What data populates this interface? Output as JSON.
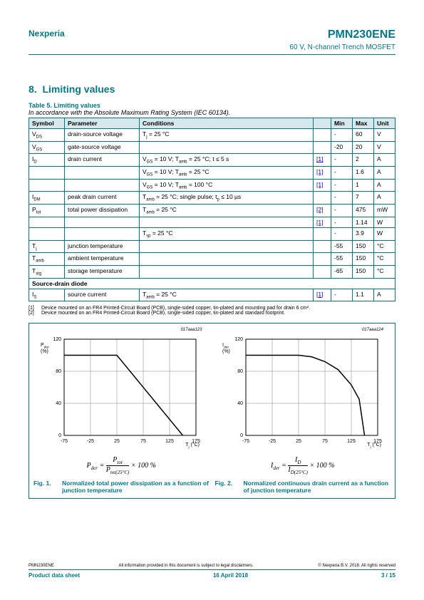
{
  "header": {
    "brand": "Nexperia",
    "part": "PMN230ENE",
    "subtitle": "60 V, N-channel Trench MOSFET"
  },
  "section": {
    "number": "8.",
    "title": "Limiting values"
  },
  "tableTitle": "Table 5. Limiting values",
  "tableNote": "In accordance with the Absolute Maximum Rating System (IEC 60134).",
  "headers": {
    "symbol": "Symbol",
    "parameter": "Parameter",
    "conditions": "Conditions",
    "blank": "",
    "min": "Min",
    "max": "Max",
    "unit": "Unit"
  },
  "rows": [
    {
      "sym": "V<sub>DS</sub>",
      "param": "drain-source voltage",
      "cond": "T<sub>j</sub> = 25 °C",
      "ref": "",
      "min": "-",
      "max": "60",
      "unit": "V"
    },
    {
      "sym": "V<sub>GS</sub>",
      "param": "gate-source voltage",
      "cond": "",
      "ref": "",
      "min": "-20",
      "max": "20",
      "unit": "V"
    },
    {
      "sym": "I<sub>D</sub>",
      "param": "drain current",
      "cond": "V<sub>GS</sub> = 10 V; T<sub>amb</sub> = 25 °C; t ≤ 5 s",
      "ref": "[1]",
      "min": "-",
      "max": "2",
      "unit": "A"
    },
    {
      "sym": "",
      "param": "",
      "cond": "V<sub>GS</sub> = 10 V; T<sub>amb</sub> = 25 °C",
      "ref": "[1]",
      "min": "-",
      "max": "1.6",
      "unit": "A"
    },
    {
      "sym": "",
      "param": "",
      "cond": "V<sub>GS</sub> = 10 V; T<sub>amb</sub> = 100 °C",
      "ref": "[1]",
      "min": "-",
      "max": "1",
      "unit": "A"
    },
    {
      "sym": "I<sub>DM</sub>",
      "param": "peak drain current",
      "cond": "T<sub>amb</sub> = 25 °C; single pulse; t<sub>p</sub> ≤  10 µs",
      "ref": "",
      "min": "-",
      "max": "7",
      "unit": "A"
    },
    {
      "sym": "P<sub>tot</sub>",
      "param": "total power dissipation",
      "cond": "T<sub>amb</sub> = 25 °C",
      "ref": "[2]",
      "min": "-",
      "max": "475",
      "unit": "mW"
    },
    {
      "sym": "",
      "param": "",
      "cond": "",
      "ref": "[1]",
      "min": "-",
      "max": "1.14",
      "unit": "W"
    },
    {
      "sym": "",
      "param": "",
      "cond": "T<sub>sp</sub> = 25 °C",
      "ref": "",
      "min": "-",
      "max": "3.9",
      "unit": "W"
    },
    {
      "sym": "T<sub>j</sub>",
      "param": "junction temperature",
      "cond": "",
      "ref": "",
      "min": "-55",
      "max": "150",
      "unit": "°C"
    },
    {
      "sym": "T<sub>amb</sub>",
      "param": "ambient temperature",
      "cond": "",
      "ref": "",
      "min": "-55",
      "max": "150",
      "unit": "°C"
    },
    {
      "sym": "T<sub>stg</sub>",
      "param": "storage temperature",
      "cond": "",
      "ref": "",
      "min": "-65",
      "max": "150",
      "unit": "°C"
    }
  ],
  "sectionRow": "Source-drain diode",
  "rowIs": {
    "sym": "I<sub>S</sub>",
    "param": "source current",
    "cond": "T<sub>amb</sub> = 25 °C",
    "ref": "[1]",
    "min": "-",
    "max": "1.1",
    "unit": "A"
  },
  "footnotes": [
    {
      "num": "[1]",
      "text": "Device mounted on an FR4 Printed-Circuit Board (PCB), single-sided copper, tin-plated and mounting pad for drain 6 cm²."
    },
    {
      "num": "[2]",
      "text": "Device mounted on an FR4 Printed-Circuit Board (PCB), single-sided copper, tin-plated and standard footprint."
    }
  ],
  "fig1": {
    "id": "017aaa123",
    "type": "line",
    "ylabel_html": "P<sub>der</sub><br>(%)",
    "xlabel_html": "T<sub>j</sub> (°C)",
    "xlim": [
      -75,
      175
    ],
    "ylim": [
      0,
      120
    ],
    "xticks": [
      -75,
      -25,
      25,
      75,
      125,
      175
    ],
    "yticks": [
      0,
      40,
      80,
      120
    ],
    "line_color": "#000000",
    "grid_color": "#808080",
    "bg_color": "#ffffff",
    "points": [
      [
        -75,
        100
      ],
      [
        25,
        100
      ],
      [
        150,
        0
      ]
    ],
    "formula_html": "P<sub>der</sub> = <span style='display:inline-block;vertical-align:middle;text-align:center;'><span style='display:block;border-bottom:1px solid #000;'>P<sub>tot</sub></span><span style='display:block;'>P<sub>tot(25°C)</sub></span></span> × 100 %",
    "caption_num": "Fig. 1.",
    "caption_text": "Normalized total power dissipation as a function of junction temperature"
  },
  "fig2": {
    "id": "017aaa124",
    "type": "line",
    "ylabel_html": "I<sub>der</sub><br>(%)",
    "xlabel_html": "T<sub>j</sub> (°C)",
    "xlim": [
      -75,
      175
    ],
    "ylim": [
      0,
      120
    ],
    "xticks": [
      -75,
      -25,
      25,
      75,
      125,
      175
    ],
    "yticks": [
      0,
      40,
      80,
      120
    ],
    "line_color": "#000000",
    "grid_color": "#808080",
    "bg_color": "#ffffff",
    "points": [
      [
        -75,
        100
      ],
      [
        25,
        100
      ],
      [
        50,
        98
      ],
      [
        75,
        92
      ],
      [
        100,
        82
      ],
      [
        125,
        63
      ],
      [
        140,
        45
      ],
      [
        150,
        0
      ]
    ],
    "formula_html": "I<sub>der</sub> = <span style='display:inline-block;vertical-align:middle;text-align:center;'><span style='display:block;border-bottom:1px solid #000;'>I<sub>D</sub></span><span style='display:block;'>I<sub>D(25°C)</sub></span></span> × 100 %",
    "caption_num": "Fig. 2.",
    "caption_text": "Normalized continuous drain current as a function of junction temperature"
  },
  "footer": {
    "part": "PMN230ENE",
    "disclaimer": "All information provided in this document is subject to legal disclaimers.",
    "copyright": "© Nexperia B.V. 2018. All rights reserved",
    "doctype": "Product data sheet",
    "date": "16 April 2018",
    "page": "3 / 15"
  },
  "palette": {
    "teal": "#007a8a",
    "header_bg": "#d6e8ec"
  }
}
